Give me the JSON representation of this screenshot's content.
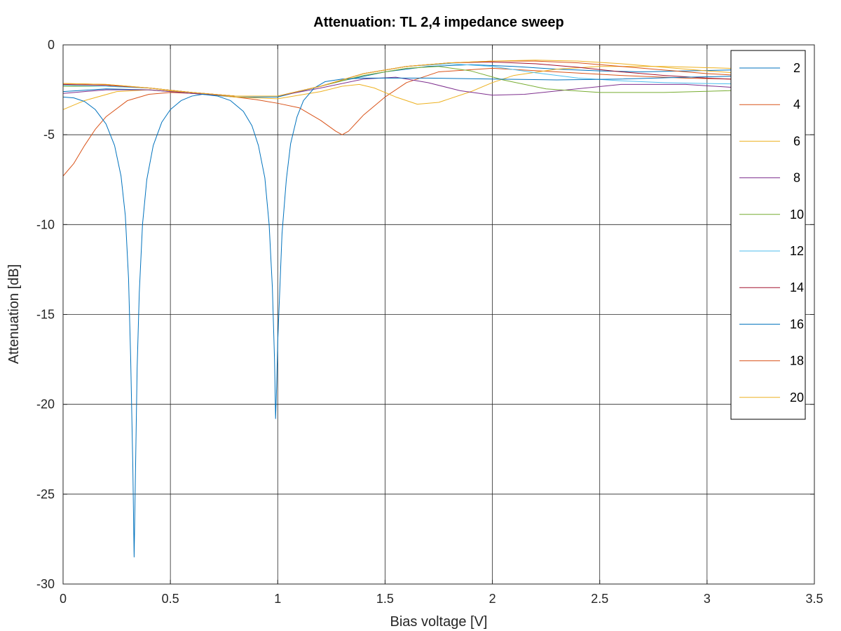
{
  "chart_data": {
    "type": "line",
    "title": "Attenuation: TL 2,4 impedance sweep",
    "xlabel": "Bias voltage [V]",
    "ylabel": "Attenuation [dB]",
    "xlim": [
      0,
      3.5
    ],
    "ylim": [
      -30,
      0
    ],
    "xticks": [
      0,
      0.5,
      1,
      1.5,
      2,
      2.5,
      3,
      3.5
    ],
    "xtick_labels": [
      "0",
      "0.5",
      "1",
      "1.5",
      "2",
      "2.5",
      "3",
      "3.5"
    ],
    "yticks": [
      0,
      -5,
      -10,
      -15,
      -20,
      -25,
      -30
    ],
    "ytick_labels": [
      "0",
      "-5",
      "-10",
      "-15",
      "-20",
      "-25",
      "-30"
    ],
    "grid": true,
    "legend_position": "top-right",
    "series": [
      {
        "name": "2",
        "color": "#0072BD",
        "points": [
          [
            0,
            -2.6
          ],
          [
            0.2,
            -2.45
          ],
          [
            0.4,
            -2.5
          ],
          [
            0.6,
            -2.7
          ],
          [
            0.8,
            -2.9
          ],
          [
            1.0,
            -2.9
          ],
          [
            1.1,
            -2.6
          ],
          [
            1.3,
            -2.0
          ],
          [
            1.5,
            -1.5
          ],
          [
            1.7,
            -1.2
          ],
          [
            1.9,
            -1.1
          ],
          [
            2.1,
            -1.2
          ],
          [
            2.3,
            -1.35
          ],
          [
            2.5,
            -1.45
          ],
          [
            2.7,
            -1.5
          ],
          [
            2.9,
            -1.45
          ],
          [
            3.1,
            -1.4
          ],
          [
            3.3,
            -1.3
          ]
        ]
      },
      {
        "name": "4",
        "color": "#D95319",
        "points": [
          [
            0,
            -7.3
          ],
          [
            0.05,
            -6.6
          ],
          [
            0.1,
            -5.6
          ],
          [
            0.15,
            -4.7
          ],
          [
            0.2,
            -4.0
          ],
          [
            0.3,
            -3.1
          ],
          [
            0.4,
            -2.75
          ],
          [
            0.5,
            -2.65
          ],
          [
            0.7,
            -2.75
          ],
          [
            0.9,
            -3.05
          ],
          [
            1.0,
            -3.25
          ],
          [
            1.1,
            -3.5
          ],
          [
            1.2,
            -4.2
          ],
          [
            1.27,
            -4.8
          ],
          [
            1.3,
            -5.0
          ],
          [
            1.33,
            -4.8
          ],
          [
            1.4,
            -3.9
          ],
          [
            1.5,
            -2.9
          ],
          [
            1.6,
            -2.1
          ],
          [
            1.75,
            -1.5
          ],
          [
            2.0,
            -1.3
          ],
          [
            2.3,
            -1.5
          ],
          [
            2.6,
            -1.7
          ],
          [
            2.9,
            -1.85
          ],
          [
            3.1,
            -1.9
          ],
          [
            3.3,
            -1.9
          ]
        ]
      },
      {
        "name": "6",
        "color": "#EDB120",
        "points": [
          [
            0,
            -3.6
          ],
          [
            0.1,
            -3.1
          ],
          [
            0.25,
            -2.6
          ],
          [
            0.4,
            -2.5
          ],
          [
            0.6,
            -2.65
          ],
          [
            0.8,
            -2.9
          ],
          [
            1.0,
            -3.0
          ],
          [
            1.2,
            -2.6
          ],
          [
            1.3,
            -2.3
          ],
          [
            1.38,
            -2.2
          ],
          [
            1.45,
            -2.4
          ],
          [
            1.55,
            -2.9
          ],
          [
            1.65,
            -3.3
          ],
          [
            1.75,
            -3.2
          ],
          [
            1.9,
            -2.6
          ],
          [
            2.0,
            -2.1
          ],
          [
            2.1,
            -1.7
          ],
          [
            2.3,
            -1.35
          ],
          [
            2.5,
            -1.2
          ],
          [
            2.8,
            -1.2
          ],
          [
            3.1,
            -1.3
          ],
          [
            3.3,
            -1.35
          ]
        ]
      },
      {
        "name": "8",
        "color": "#7E2F8E",
        "points": [
          [
            0,
            -2.7
          ],
          [
            0.2,
            -2.5
          ],
          [
            0.4,
            -2.5
          ],
          [
            0.6,
            -2.7
          ],
          [
            0.8,
            -2.85
          ],
          [
            1.0,
            -2.85
          ],
          [
            1.2,
            -2.4
          ],
          [
            1.4,
            -1.9
          ],
          [
            1.55,
            -1.8
          ],
          [
            1.7,
            -2.1
          ],
          [
            1.85,
            -2.55
          ],
          [
            2.0,
            -2.8
          ],
          [
            2.15,
            -2.75
          ],
          [
            2.35,
            -2.5
          ],
          [
            2.6,
            -2.2
          ],
          [
            2.9,
            -2.2
          ],
          [
            3.1,
            -2.35
          ],
          [
            3.3,
            -2.5
          ]
        ]
      },
      {
        "name": "10",
        "color": "#77AC30",
        "points": [
          [
            0,
            -2.3
          ],
          [
            0.2,
            -2.3
          ],
          [
            0.4,
            -2.4
          ],
          [
            0.6,
            -2.65
          ],
          [
            0.8,
            -2.85
          ],
          [
            1.0,
            -2.85
          ],
          [
            1.2,
            -2.3
          ],
          [
            1.4,
            -1.7
          ],
          [
            1.6,
            -1.3
          ],
          [
            1.75,
            -1.2
          ],
          [
            1.9,
            -1.45
          ],
          [
            2.05,
            -1.95
          ],
          [
            2.25,
            -2.45
          ],
          [
            2.5,
            -2.65
          ],
          [
            2.8,
            -2.65
          ],
          [
            3.1,
            -2.55
          ],
          [
            3.3,
            -2.4
          ]
        ]
      },
      {
        "name": "12",
        "color": "#4DBEEE",
        "points": [
          [
            0,
            -2.25
          ],
          [
            0.2,
            -2.3
          ],
          [
            0.4,
            -2.4
          ],
          [
            0.6,
            -2.65
          ],
          [
            0.8,
            -2.85
          ],
          [
            1.0,
            -2.85
          ],
          [
            1.2,
            -2.3
          ],
          [
            1.4,
            -1.6
          ],
          [
            1.6,
            -1.2
          ],
          [
            1.8,
            -1.05
          ],
          [
            2.0,
            -1.2
          ],
          [
            2.2,
            -1.55
          ],
          [
            2.4,
            -1.85
          ],
          [
            2.6,
            -2.0
          ],
          [
            2.8,
            -2.1
          ],
          [
            3.0,
            -2.15
          ],
          [
            3.3,
            -2.2
          ]
        ]
      },
      {
        "name": "14",
        "color": "#A2142F",
        "points": [
          [
            0,
            -2.2
          ],
          [
            0.2,
            -2.25
          ],
          [
            0.4,
            -2.4
          ],
          [
            0.6,
            -2.65
          ],
          [
            0.8,
            -2.85
          ],
          [
            1.0,
            -2.85
          ],
          [
            1.2,
            -2.3
          ],
          [
            1.4,
            -1.6
          ],
          [
            1.6,
            -1.2
          ],
          [
            1.8,
            -1.0
          ],
          [
            2.0,
            -0.95
          ],
          [
            2.2,
            -1.05
          ],
          [
            2.4,
            -1.25
          ],
          [
            2.6,
            -1.5
          ],
          [
            2.8,
            -1.7
          ],
          [
            3.0,
            -1.85
          ],
          [
            3.3,
            -2.0
          ]
        ]
      },
      {
        "name": "16",
        "color": "#0072BD",
        "points": [
          [
            0,
            -2.9
          ],
          [
            0.05,
            -2.95
          ],
          [
            0.1,
            -3.15
          ],
          [
            0.15,
            -3.6
          ],
          [
            0.2,
            -4.4
          ],
          [
            0.24,
            -5.6
          ],
          [
            0.27,
            -7.3
          ],
          [
            0.29,
            -9.5
          ],
          [
            0.305,
            -13.0
          ],
          [
            0.315,
            -17.5
          ],
          [
            0.325,
            -23.5
          ],
          [
            0.331,
            -28.5
          ],
          [
            0.337,
            -24.0
          ],
          [
            0.345,
            -18.0
          ],
          [
            0.355,
            -13.8
          ],
          [
            0.37,
            -10.0
          ],
          [
            0.39,
            -7.5
          ],
          [
            0.42,
            -5.6
          ],
          [
            0.46,
            -4.3
          ],
          [
            0.5,
            -3.6
          ],
          [
            0.55,
            -3.1
          ],
          [
            0.6,
            -2.85
          ],
          [
            0.65,
            -2.75
          ],
          [
            0.72,
            -2.85
          ],
          [
            0.78,
            -3.1
          ],
          [
            0.84,
            -3.7
          ],
          [
            0.88,
            -4.5
          ],
          [
            0.91,
            -5.6
          ],
          [
            0.94,
            -7.4
          ],
          [
            0.96,
            -10.0
          ],
          [
            0.975,
            -13.5
          ],
          [
            0.985,
            -17.5
          ],
          [
            0.99,
            -20.8
          ],
          [
            0.995,
            -19.0
          ],
          [
            1.0,
            -16.5
          ],
          [
            1.01,
            -13.5
          ],
          [
            1.02,
            -10.5
          ],
          [
            1.04,
            -7.5
          ],
          [
            1.06,
            -5.5
          ],
          [
            1.09,
            -4.0
          ],
          [
            1.12,
            -3.1
          ],
          [
            1.17,
            -2.4
          ],
          [
            1.22,
            -2.05
          ],
          [
            1.3,
            -1.9
          ],
          [
            1.4,
            -1.85
          ],
          [
            1.5,
            -1.85
          ],
          [
            1.7,
            -1.85
          ],
          [
            2.0,
            -1.9
          ],
          [
            2.3,
            -1.95
          ],
          [
            2.6,
            -1.9
          ],
          [
            2.9,
            -1.8
          ],
          [
            3.1,
            -1.75
          ],
          [
            3.3,
            -1.7
          ]
        ]
      },
      {
        "name": "18",
        "color": "#D95319",
        "points": [
          [
            0,
            -2.15
          ],
          [
            0.2,
            -2.2
          ],
          [
            0.4,
            -2.4
          ],
          [
            0.6,
            -2.65
          ],
          [
            0.8,
            -2.85
          ],
          [
            1.0,
            -2.85
          ],
          [
            1.2,
            -2.3
          ],
          [
            1.4,
            -1.6
          ],
          [
            1.6,
            -1.2
          ],
          [
            1.8,
            -1.0
          ],
          [
            2.0,
            -0.9
          ],
          [
            2.2,
            -0.9
          ],
          [
            2.4,
            -1.0
          ],
          [
            2.6,
            -1.2
          ],
          [
            2.8,
            -1.4
          ],
          [
            3.0,
            -1.6
          ],
          [
            3.3,
            -1.8
          ]
        ]
      },
      {
        "name": "20",
        "color": "#EDB120",
        "points": [
          [
            0,
            -2.15
          ],
          [
            0.2,
            -2.2
          ],
          [
            0.4,
            -2.4
          ],
          [
            0.6,
            -2.65
          ],
          [
            0.8,
            -2.85
          ],
          [
            1.0,
            -2.85
          ],
          [
            1.2,
            -2.3
          ],
          [
            1.4,
            -1.6
          ],
          [
            1.6,
            -1.2
          ],
          [
            1.8,
            -1.0
          ],
          [
            2.0,
            -0.9
          ],
          [
            2.2,
            -0.85
          ],
          [
            2.4,
            -0.9
          ],
          [
            2.6,
            -1.05
          ],
          [
            2.8,
            -1.25
          ],
          [
            3.0,
            -1.45
          ],
          [
            3.3,
            -1.7
          ]
        ]
      }
    ]
  }
}
